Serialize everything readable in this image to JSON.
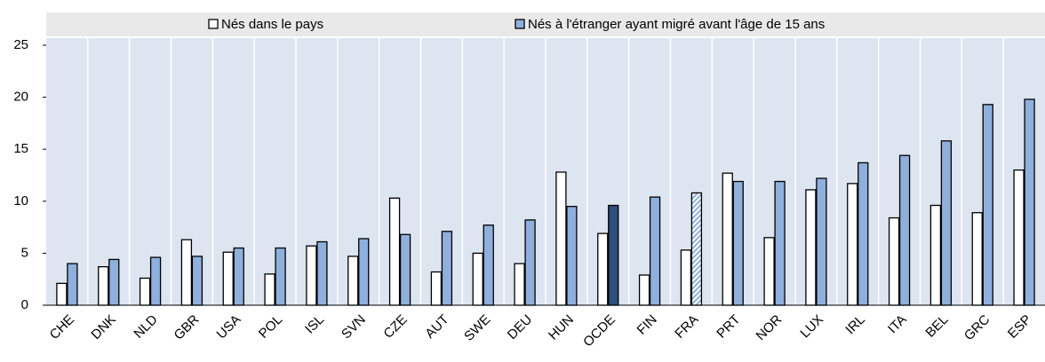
{
  "chart_data": {
    "type": "bar",
    "categories": [
      "CHE",
      "DNK",
      "NLD",
      "GBR",
      "USA",
      "POL",
      "ISL",
      "SVN",
      "CZE",
      "AUT",
      "SWE",
      "DEU",
      "HUN",
      "OCDE",
      "FIN",
      "FRA",
      "PRT",
      "NOR",
      "LUX",
      "IRL",
      "ITA",
      "BEL",
      "GRC",
      "ESP"
    ],
    "series": [
      {
        "name": "Nés dans le pays",
        "color": "#ffffff",
        "values": [
          2.1,
          3.7,
          2.6,
          6.3,
          5.1,
          3.0,
          5.7,
          4.7,
          10.3,
          3.2,
          5.0,
          4.0,
          12.8,
          6.9,
          2.9,
          5.3,
          12.7,
          6.5,
          11.1,
          11.7,
          8.4,
          9.6,
          8.9,
          13.0
        ]
      },
      {
        "name": "Nés à l'étranger ayant migré avant l'âge de 15 ans",
        "color": "#8fb0dc",
        "colors": [
          "#8fb0dc",
          "#8fb0dc",
          "#8fb0dc",
          "#8fb0dc",
          "#8fb0dc",
          "#8fb0dc",
          "#8fb0dc",
          "#8fb0dc",
          "#8fb0dc",
          "#8fb0dc",
          "#8fb0dc",
          "#8fb0dc",
          "#8fb0dc",
          "#2c4f7c",
          "#8fb0dc",
          "hatch",
          "#8fb0dc",
          "#8fb0dc",
          "#8fb0dc",
          "#8fb0dc",
          "#8fb0dc",
          "#8fb0dc",
          "#8fb0dc",
          "#8fb0dc"
        ],
        "values": [
          4.0,
          4.4,
          4.6,
          4.7,
          5.5,
          5.5,
          6.1,
          6.4,
          6.8,
          7.1,
          7.7,
          8.2,
          9.5,
          9.6,
          10.4,
          10.8,
          11.9,
          11.9,
          12.2,
          13.7,
          14.4,
          15.8,
          19.3,
          19.8
        ]
      }
    ],
    "ylim": [
      0,
      25
    ],
    "yticks": [
      0,
      5,
      10,
      15,
      20,
      25
    ]
  }
}
